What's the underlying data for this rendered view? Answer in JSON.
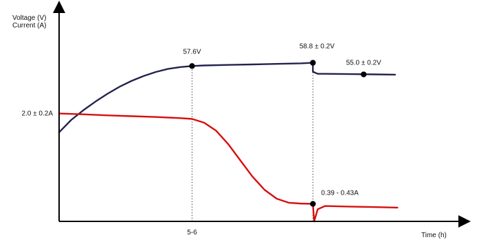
{
  "chart_data": {
    "type": "line",
    "title": "",
    "ylabel_lines": [
      "Voltage (V)",
      "Current (A)"
    ],
    "xlabel": "Time (h)",
    "x_ticks": [
      {
        "x": 5.5,
        "label": "5-6"
      }
    ],
    "xlim": [
      0,
      14.5
    ],
    "ylim": [
      0,
      62
    ],
    "colors": {
      "voltage": "#22224f",
      "current": "#d90d0d",
      "axis": "#000000",
      "guide": "#444444"
    },
    "series": [
      {
        "key": "voltage",
        "points": [
          [
            0,
            33
          ],
          [
            0.5,
            37.6
          ],
          [
            1,
            41.2
          ],
          [
            1.5,
            44.4
          ],
          [
            2,
            47.3
          ],
          [
            2.5,
            49.9
          ],
          [
            3,
            52.1
          ],
          [
            3.5,
            53.9
          ],
          [
            4,
            55.4
          ],
          [
            4.5,
            56.5
          ],
          [
            5,
            57.2
          ],
          [
            5.5,
            57.6
          ],
          [
            6,
            57.8
          ],
          [
            7,
            58.0
          ],
          [
            8,
            58.2
          ],
          [
            9,
            58.4
          ],
          [
            10,
            58.6
          ],
          [
            10.5,
            58.8
          ],
          [
            10.5,
            55.5
          ],
          [
            10.7,
            54.7
          ],
          [
            11,
            54.7
          ],
          [
            12,
            54.6
          ],
          [
            13,
            54.5
          ],
          [
            13.9,
            54.4
          ]
        ]
      },
      {
        "key": "current",
        "points": [
          [
            0,
            40
          ],
          [
            1,
            39.7
          ],
          [
            2,
            39.3
          ],
          [
            3,
            39
          ],
          [
            4,
            38.7
          ],
          [
            5,
            38.3
          ],
          [
            5.5,
            38
          ],
          [
            6,
            36.6
          ],
          [
            6.5,
            33.6
          ],
          [
            7,
            28.6
          ],
          [
            7.5,
            22.6
          ],
          [
            8,
            16.6
          ],
          [
            8.5,
            11.7
          ],
          [
            9,
            8.4
          ],
          [
            9.5,
            6.9
          ],
          [
            10,
            6.6
          ],
          [
            10.5,
            6.5
          ],
          [
            10.55,
            0
          ],
          [
            10.7,
            4.5
          ],
          [
            11,
            5.7
          ],
          [
            12,
            5.5
          ],
          [
            13,
            5.3
          ],
          [
            14,
            5.1
          ]
        ]
      }
    ],
    "markers": [
      [
        5.5,
        57.6
      ],
      [
        10.5,
        58.8
      ],
      [
        10.5,
        6.5
      ],
      [
        12.6,
        54.5
      ]
    ],
    "guides_x": [
      5.5,
      10.5
    ],
    "annotations": [
      {
        "text": "57.6V",
        "x": 5.5,
        "y": 57.6
      },
      {
        "text": "58.8 ± 0.2V",
        "x": 10.5,
        "y": 58.8
      },
      {
        "text": "55.0 ± 0.2V",
        "x": 12.6,
        "y": 54.5
      },
      {
        "text": "2.0 ± 0.2A",
        "x": 0,
        "y": 40
      },
      {
        "text": "0.39 - 0.43A",
        "x": 10.5,
        "y": 6.5
      }
    ]
  }
}
